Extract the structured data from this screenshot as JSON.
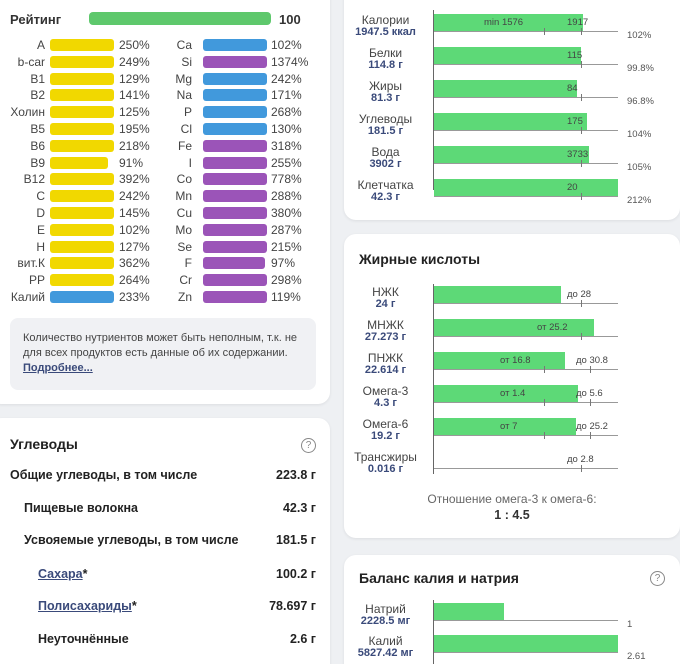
{
  "rating": {
    "label": "Рейтинг",
    "value": "100",
    "fraction": 1.0
  },
  "nutrients_left": [
    {
      "name": "A",
      "pct": "250%",
      "color": "#f1d800",
      "fill": 1.0
    },
    {
      "name": "b-car",
      "pct": "249%",
      "color": "#f1d800",
      "fill": 1.0
    },
    {
      "name": "B1",
      "pct": "129%",
      "color": "#f1d800",
      "fill": 1.0
    },
    {
      "name": "B2",
      "pct": "141%",
      "color": "#f1d800",
      "fill": 1.0
    },
    {
      "name": "Холин",
      "pct": "125%",
      "color": "#f1d800",
      "fill": 1.0
    },
    {
      "name": "B5",
      "pct": "195%",
      "color": "#f1d800",
      "fill": 1.0
    },
    {
      "name": "B6",
      "pct": "218%",
      "color": "#f1d800",
      "fill": 1.0
    },
    {
      "name": "B9",
      "pct": "91%",
      "color": "#f1d800",
      "fill": 0.91
    },
    {
      "name": "B12",
      "pct": "392%",
      "color": "#f1d800",
      "fill": 1.0
    },
    {
      "name": "C",
      "pct": "242%",
      "color": "#f1d800",
      "fill": 1.0
    },
    {
      "name": "D",
      "pct": "145%",
      "color": "#f1d800",
      "fill": 1.0
    },
    {
      "name": "E",
      "pct": "102%",
      "color": "#f1d800",
      "fill": 1.0
    },
    {
      "name": "H",
      "pct": "127%",
      "color": "#f1d800",
      "fill": 1.0
    },
    {
      "name": "вит.К",
      "pct": "362%",
      "color": "#f1d800",
      "fill": 1.0
    },
    {
      "name": "PP",
      "pct": "264%",
      "color": "#f1d800",
      "fill": 1.0
    },
    {
      "name": "Калий",
      "pct": "233%",
      "color": "#4199dc",
      "fill": 1.0
    }
  ],
  "nutrients_right": [
    {
      "name": "Ca",
      "pct": "102%",
      "color": "#4199dc",
      "fill": 1.0
    },
    {
      "name": "Si",
      "pct": "1374%",
      "color": "#9b54b8",
      "fill": 1.0
    },
    {
      "name": "Mg",
      "pct": "242%",
      "color": "#4199dc",
      "fill": 1.0
    },
    {
      "name": "Na",
      "pct": "171%",
      "color": "#4199dc",
      "fill": 1.0
    },
    {
      "name": "P",
      "pct": "268%",
      "color": "#4199dc",
      "fill": 1.0
    },
    {
      "name": "Cl",
      "pct": "130%",
      "color": "#4199dc",
      "fill": 1.0
    },
    {
      "name": "Fe",
      "pct": "318%",
      "color": "#9b54b8",
      "fill": 1.0
    },
    {
      "name": "I",
      "pct": "255%",
      "color": "#9b54b8",
      "fill": 1.0
    },
    {
      "name": "Co",
      "pct": "778%",
      "color": "#9b54b8",
      "fill": 1.0
    },
    {
      "name": "Mn",
      "pct": "288%",
      "color": "#9b54b8",
      "fill": 1.0
    },
    {
      "name": "Cu",
      "pct": "380%",
      "color": "#9b54b8",
      "fill": 1.0
    },
    {
      "name": "Mo",
      "pct": "287%",
      "color": "#9b54b8",
      "fill": 1.0
    },
    {
      "name": "Se",
      "pct": "215%",
      "color": "#9b54b8",
      "fill": 1.0
    },
    {
      "name": "F",
      "pct": "97%",
      "color": "#9b54b8",
      "fill": 0.97
    },
    {
      "name": "Cr",
      "pct": "298%",
      "color": "#9b54b8",
      "fill": 1.0
    },
    {
      "name": "Zn",
      "pct": "119%",
      "color": "#9b54b8",
      "fill": 1.0
    }
  ],
  "note": {
    "text": "Количество нутриентов может быть неполным, т.к. не для всех продуктов есть данные об их содержании. ",
    "link": "Подробнее..."
  },
  "carbs": {
    "title": "Углеводы",
    "help": "?",
    "rows": [
      {
        "label": "Общие углеводы, в том числе",
        "value": "223.8 г",
        "link": false,
        "star": ""
      },
      {
        "label": "Пищевые волокна",
        "value": "42.3 г",
        "link": false,
        "star": ""
      },
      {
        "label": "Усвояемые углеводы, в том числе",
        "value": "181.5 г",
        "link": false,
        "star": ""
      },
      {
        "label": "Сахара",
        "value": "100.2 г",
        "link": true,
        "star": "*"
      },
      {
        "label": "Полисахариды",
        "value": "78.697 г",
        "link": true,
        "star": "*"
      },
      {
        "label": "Неуточнённые",
        "value": "2.6 г",
        "link": false,
        "star": ""
      }
    ]
  },
  "macros": [
    {
      "name": "Калории",
      "value": "1947.5 ккал",
      "fill": 0.81,
      "ticks": [
        {
          "pos": 0.6,
          "label": "min 1576"
        },
        {
          "pos": 0.8,
          "label": "1917"
        }
      ],
      "pct": "102%"
    },
    {
      "name": "Белки",
      "value": "114.8 г",
      "fill": 0.8,
      "ticks": [
        {
          "pos": 0.8,
          "label": "115"
        }
      ],
      "pct": "99.8%"
    },
    {
      "name": "Жиры",
      "value": "81.3 г",
      "fill": 0.775,
      "ticks": [
        {
          "pos": 0.8,
          "label": "84"
        }
      ],
      "pct": "96.8%"
    },
    {
      "name": "Углеводы",
      "value": "181.5 г",
      "fill": 0.83,
      "ticks": [
        {
          "pos": 0.8,
          "label": "175"
        }
      ],
      "pct": "104%"
    },
    {
      "name": "Вода",
      "value": "3902 г",
      "fill": 0.84,
      "ticks": [
        {
          "pos": 0.8,
          "label": "3733"
        }
      ],
      "pct": "105%"
    },
    {
      "name": "Клетчатка",
      "value": "42.3 г",
      "fill": 1.0,
      "ticks": [
        {
          "pos": 0.8,
          "label": "20"
        }
      ],
      "pct": "212%"
    }
  ],
  "fatty": {
    "title": "Жирные кислоты",
    "rows": [
      {
        "name": "НЖК",
        "value": "24 г",
        "fill": 0.69,
        "ticks": [
          {
            "pos": 0.8,
            "label": "до 28"
          }
        ]
      },
      {
        "name": "МНЖК",
        "value": "27.273 г",
        "fill": 0.87,
        "ticks": [
          {
            "pos": 0.8,
            "label": "от 25.2"
          }
        ]
      },
      {
        "name": "ПНЖК",
        "value": "22.614 г",
        "fill": 0.71,
        "ticks": [
          {
            "pos": 0.6,
            "label": "от 16.8"
          },
          {
            "pos": 0.85,
            "label": "до 30.8"
          }
        ]
      },
      {
        "name": "Омега-3",
        "value": "4.3 г",
        "fill": 0.78,
        "ticks": [
          {
            "pos": 0.6,
            "label": "от 1.4"
          },
          {
            "pos": 0.85,
            "label": "до 5.6"
          }
        ]
      },
      {
        "name": "Омега-6",
        "value": "19.2 г",
        "fill": 0.77,
        "ticks": [
          {
            "pos": 0.6,
            "label": "от 7"
          },
          {
            "pos": 0.85,
            "label": "до 25.2"
          }
        ]
      },
      {
        "name": "Трансжиры",
        "value": "0.016 г",
        "fill": 0.0,
        "ticks": [
          {
            "pos": 0.8,
            "label": "до 2.8"
          }
        ]
      }
    ],
    "ratio_label": "Отношение омега-3 к омега-6:",
    "ratio_value": "1 : 4.5"
  },
  "kna": {
    "title": "Баланс калия и натрия",
    "help": "?",
    "rows": [
      {
        "name": "Натрий",
        "value": "2228.5 мг",
        "fill": 0.38,
        "pct": "1"
      },
      {
        "name": "Калий",
        "value": "5827.42 мг",
        "fill": 1.0,
        "pct": "2.61"
      }
    ]
  }
}
